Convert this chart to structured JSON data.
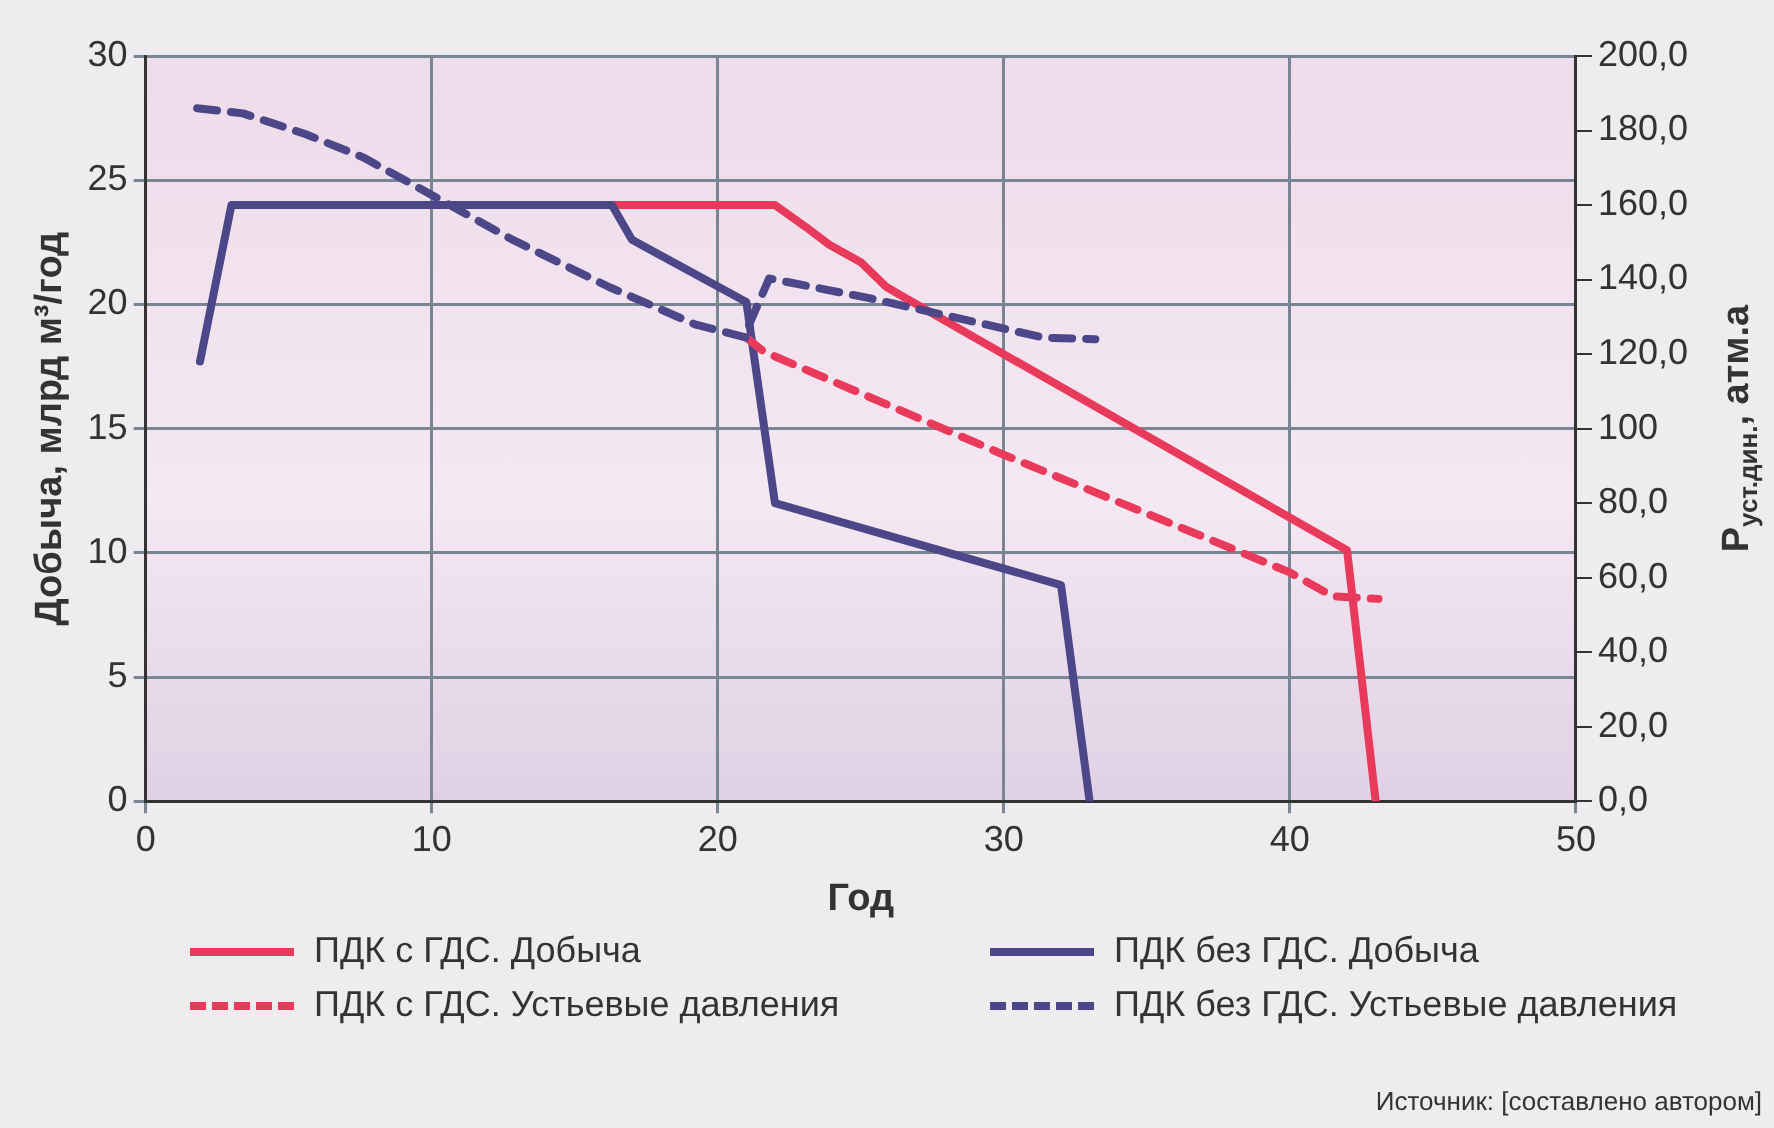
{
  "chart_data": {
    "type": "line",
    "xlabel": "Год",
    "ylabel": "Добыча, млрд м³/год",
    "y2label": "Р$_{уст.дин.}$, атм.а",
    "xlim": [
      0,
      50
    ],
    "xticks": [
      0,
      10,
      20,
      30,
      40,
      50
    ],
    "ylim": [
      0,
      30
    ],
    "yticks": [
      0,
      5,
      10,
      15,
      20,
      25,
      30
    ],
    "y2lim": [
      0,
      200
    ],
    "y2ticks": [
      {
        "value": 0,
        "label": "0,0"
      },
      {
        "value": 20,
        "label": "20,0"
      },
      {
        "value": 40,
        "label": "40,0"
      },
      {
        "value": 60,
        "label": "60,0"
      },
      {
        "value": 80,
        "label": "80,0"
      },
      {
        "value": 100,
        "label": "100"
      },
      {
        "value": 120,
        "label": "120,0"
      },
      {
        "value": 140,
        "label": "140,0"
      },
      {
        "value": 160,
        "label": "160,0"
      },
      {
        "value": 180,
        "label": "180,0"
      },
      {
        "value": 200,
        "label": "200,0"
      }
    ],
    "grid": true,
    "legend": "bottom",
    "marker": "none",
    "series": [
      {
        "name": "ПДК с ГДС. Добыча",
        "color": "#ea3a5c",
        "line_style": "solid",
        "x": [
          16.3,
          22,
          23.1,
          23.9,
          25,
          25.9,
          26.5,
          42,
          43
        ],
        "values": [
          24,
          24,
          23.1,
          22.4,
          21.7,
          20.7,
          20.3,
          10.1,
          0
        ]
      },
      {
        "name": "ПДК без ГДС. Добыча",
        "color": "#4b4788",
        "line_style": "solid",
        "x": [
          1.9,
          3,
          16.3,
          17,
          21,
          22,
          32,
          33
        ],
        "values": [
          17.7,
          24,
          24,
          22.6,
          20.1,
          12,
          8.7,
          0
        ]
      },
      {
        "name": "ПДК с ГДС. Устьевые давления",
        "color": "#ea3a5c",
        "line_style": "dashed",
        "axis": "y2",
        "x": [
          21,
          21.6,
          29.9,
          40,
          41.5,
          43.1
        ],
        "values": [
          124.4,
          120.7,
          93.3,
          61.4,
          55,
          54.3
        ]
      },
      {
        "name": "ПДК без ГДС. Устьевые давления",
        "color": "#4b4788",
        "line_style": "dashed",
        "axis": "y2",
        "x": [
          1.8,
          3.4,
          5.6,
          7.6,
          10,
          12.8,
          16.2,
          19.2,
          21,
          21.1,
          21.8,
          25.3,
          28.2,
          31.4,
          33.2
        ],
        "values": [
          186,
          184.6,
          179,
          172.8,
          162.7,
          150.8,
          138,
          128,
          124.4,
          128,
          140.3,
          135,
          130,
          124.4,
          124
        ]
      }
    ],
    "annotations": [
      "Источник: [составлено автором]"
    ]
  }
}
